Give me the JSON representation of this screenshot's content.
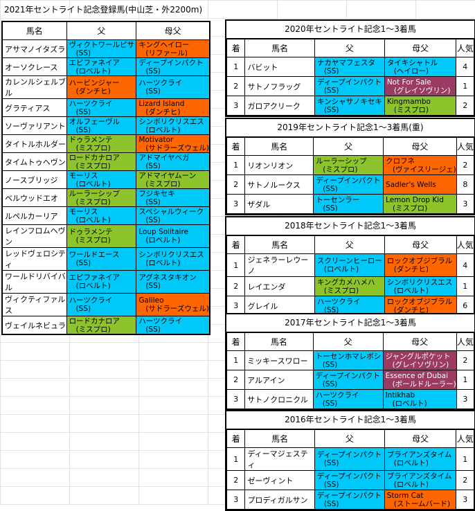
{
  "sheet_title": "2021年セントライト記念登録馬(中山芝・外2200m)",
  "colors": {
    "blue": "#00c8f8",
    "orange": "#ff6600",
    "green": "#8ec42b",
    "purple": "#9b3a63"
  },
  "entries": {
    "headers": [
      "馬名",
      "父",
      "母父"
    ],
    "rows": [
      {
        "name": "アサマノイタズラ",
        "sire": "ヴィクトワールピサ",
        "sire_line": "(SS)",
        "sire_color": "bl",
        "dam_sire": "キングヘイロー",
        "dam_sire_line": "(リファール)",
        "dam_color": "or"
      },
      {
        "name": "オーソクレース",
        "sire": "エピファネイア",
        "sire_line": "(ロベルト)",
        "sire_color": "bl",
        "dam_sire": "ディープインパクト",
        "dam_sire_line": "(SS)",
        "dam_color": "bl"
      },
      {
        "name": "カレンルシェルブル",
        "sire": "ハービンジャー",
        "sire_line": "(ダンチヒ)",
        "sire_color": "or",
        "dam_sire": "ハーツクライ",
        "dam_sire_line": "(SS)",
        "dam_color": "bl"
      },
      {
        "name": "グラティアス",
        "sire": "ハーツクライ",
        "sire_line": "(SS)",
        "sire_color": "bl",
        "dam_sire": "Lizard Island",
        "dam_sire_line": "(ダンチヒ)",
        "dam_color": "or"
      },
      {
        "name": "ソーヴァリアント",
        "sire": "オルフェーヴル",
        "sire_line": "(SS)",
        "sire_color": "bl",
        "dam_sire": "シンボリクリスエス",
        "dam_sire_line": "(ロベルト)",
        "dam_color": "bl"
      },
      {
        "name": "タイトルホルダー",
        "sire": "ドゥラメンテ",
        "sire_line": "(ミスプロ)",
        "sire_color": "gr",
        "dam_sire": "Motivator",
        "dam_sire_line": "(サドラーズウェル)",
        "dam_color": "or"
      },
      {
        "name": "タイムトゥヘヴン",
        "sire": "ロードカナロア",
        "sire_line": "(ミスプロ)",
        "sire_color": "gr",
        "dam_sire": "アドマイヤベガ",
        "dam_sire_line": "(SS)",
        "dam_color": "bl"
      },
      {
        "name": "ノースブリッジ",
        "sire": "モーリス",
        "sire_line": "(ロベルト)",
        "sire_color": "bl",
        "dam_sire": "アドマイヤムーン",
        "dam_sire_line": "(ミスプロ)",
        "dam_color": "gr"
      },
      {
        "name": "ベルウッドエオ",
        "sire": "ルーラーシップ",
        "sire_line": "(ミスプロ)",
        "sire_color": "gr",
        "dam_sire": "フジキセキ",
        "dam_sire_line": "(SS)",
        "dam_color": "bl"
      },
      {
        "name": "ルペルカーリア",
        "sire": "モーリス",
        "sire_line": "(ロベルト)",
        "sire_color": "bl",
        "dam_sire": "スペシャルウィーク",
        "dam_sire_line": "(SS)",
        "dam_color": "bl"
      },
      {
        "name": "レインフロムヘヴン",
        "sire": "ドゥラメンテ",
        "sire_line": "(ミスプロ)",
        "sire_color": "gr",
        "dam_sire": "Loup Solitaire",
        "dam_sire_line": "(ロベルト)",
        "dam_color": "bl"
      },
      {
        "name": "レッドヴェロシティ",
        "sire": "ワールドエース",
        "sire_line": "(SS)",
        "sire_color": "bl",
        "dam_sire": "シンボリクリスエス",
        "dam_sire_line": "(ロベルト)",
        "dam_color": "bl"
      },
      {
        "name": "ワールドリバイバル",
        "sire": "エピファネイア",
        "sire_line": "(ロベルト)",
        "sire_color": "bl",
        "dam_sire": "アグネスタキオン",
        "dam_sire_line": "(SS)",
        "dam_color": "bl"
      },
      {
        "name": "ヴィクティファルス",
        "sire": "ハーツクライ",
        "sire_line": "(SS)",
        "sire_color": "bl",
        "dam_sire": "Galileo",
        "dam_sire_line": "(サドラーズウェル)",
        "dam_color": "or"
      },
      {
        "name": "ヴェイルネビュラ",
        "sire": "ロードカナロア",
        "sire_line": "(ミスプロ)",
        "sire_color": "gr",
        "dam_sire": "ハーツクライ",
        "dam_sire_line": "(SS)",
        "dam_color": "bl"
      }
    ]
  },
  "results_headers": [
    "着",
    "馬名",
    "父",
    "母父",
    "人気"
  ],
  "results": [
    {
      "title": "2020年セントライト記念1～3着馬",
      "rows": [
        {
          "rank": "1",
          "name": "バビット",
          "sire": "ナカヤマフェスタ",
          "sire_line": "(SS)",
          "sire_color": "bl",
          "dam_sire": "タイキシャトル",
          "dam_sire_line": "(ヘイロー)",
          "dam_color": "bl",
          "pop": "4"
        },
        {
          "rank": "2",
          "name": "サトノフラッグ",
          "sire": "ディープインパクト",
          "sire_line": "(SS)",
          "sire_color": "bl",
          "dam_sire": "Not For Sale",
          "dam_sire_line": "(グレイソヴリン)",
          "dam_color": "pu",
          "pop": "1"
        },
        {
          "rank": "3",
          "name": "ガロアクリーク",
          "sire": "キンシャサノキセキ",
          "sire_line": "(SS)",
          "sire_color": "bl",
          "dam_sire": "Kingmambo",
          "dam_sire_line": "(ミスプロ)",
          "dam_color": "gr",
          "pop": "2"
        }
      ]
    },
    {
      "title": "2019年セントライト記念1～3着馬(重)",
      "rows": [
        {
          "rank": "1",
          "name": "リオンリオン",
          "sire": "ルーラーシップ",
          "sire_line": "(ミスプロ)",
          "sire_color": "gr",
          "dam_sire": "クロフネ",
          "dam_sire_line": "(ヴァイスリージェ)",
          "dam_color": "or",
          "pop": "2"
        },
        {
          "rank": "2",
          "name": "サトノルークス",
          "sire": "ディープインパクト",
          "sire_line": "(SS)",
          "sire_color": "bl",
          "dam_sire": "Sadler's Wells",
          "dam_sire_line": "",
          "dam_color": "or",
          "pop": "8"
        },
        {
          "rank": "3",
          "name": "ザダル",
          "sire": "トーセンラー",
          "sire_line": "(SS)",
          "sire_color": "bl",
          "dam_sire": "Lemon Drop Kid",
          "dam_sire_line": "(ミスプロ)",
          "dam_color": "gr",
          "pop": "3"
        }
      ]
    },
    {
      "title": "2018年セントライト記念1～3着馬",
      "rows": [
        {
          "rank": "1",
          "name": "ジェネラーレウーノ",
          "sire": "スクリーンヒーロー",
          "sire_line": "(ロベルト)",
          "sire_color": "bl",
          "dam_sire": "ロックオブジブラル",
          "dam_sire_line": "(ダンチヒ)",
          "dam_color": "or",
          "pop": "4"
        },
        {
          "rank": "2",
          "name": "レイエンダ",
          "sire": "キングカメハメハ",
          "sire_line": "(ミスプロ)",
          "sire_color": "gr",
          "dam_sire": "シンボリクリスエス",
          "dam_sire_line": "(ロベルト)",
          "dam_color": "bl",
          "pop": "1"
        },
        {
          "rank": "3",
          "name": "グレイル",
          "sire": "ハーツクライ",
          "sire_line": "(SS)",
          "sire_color": "bl",
          "dam_sire": "ロックオブジブラル",
          "dam_sire_line": "(ダンチヒ)",
          "dam_color": "or",
          "pop": "6"
        }
      ]
    },
    {
      "title": "2017年セントライト記念1～3着馬",
      "rows": [
        {
          "rank": "1",
          "name": "ミッキースワロー",
          "sire": "トーセンホマレボシ",
          "sire_line": "(SS)",
          "sire_color": "bl",
          "dam_sire": "ジャングルポケット",
          "dam_sire_line": "(グレイソヴリン)",
          "dam_color": "pu",
          "pop": "2"
        },
        {
          "rank": "2",
          "name": "アルアイン",
          "sire": "ディープインパクト",
          "sire_line": "(SS)",
          "sire_color": "bl",
          "dam_sire": "Essence of Dubai",
          "dam_sire_line": "(ボールドルーラー)",
          "dam_color": "pu",
          "pop": "1"
        },
        {
          "rank": "3",
          "name": "サトノクロニクル",
          "sire": "ハーツクライ",
          "sire_line": "(SS)",
          "sire_color": "bl",
          "dam_sire": "Intikhab",
          "dam_sire_line": "(ロベルト)",
          "dam_color": "bl",
          "pop": "3"
        }
      ]
    },
    {
      "title": "2016年セントライト記念1～3着馬",
      "rows": [
        {
          "rank": "1",
          "name": "ディーマジェスティ",
          "sire": "ディープインパクト",
          "sire_line": "(SS)",
          "sire_color": "bl",
          "dam_sire": "ブライアンズタイム",
          "dam_sire_line": "(ロベルト)",
          "dam_color": "bl",
          "pop": "1"
        },
        {
          "rank": "2",
          "name": "ゼーヴィント",
          "sire": "ディープインパクト",
          "sire_line": "(SS)",
          "sire_color": "bl",
          "dam_sire": "ブライアンズタイム",
          "dam_sire_line": "(ロベルト)",
          "dam_color": "bl",
          "pop": "2"
        },
        {
          "rank": "3",
          "name": "プロディガルサン",
          "sire": "ディープインパクト",
          "sire_line": "(SS)",
          "sire_color": "bl",
          "dam_sire": "Storm Cat",
          "dam_sire_line": "(ストームバード)",
          "dam_color": "or",
          "pop": "3"
        }
      ]
    }
  ]
}
